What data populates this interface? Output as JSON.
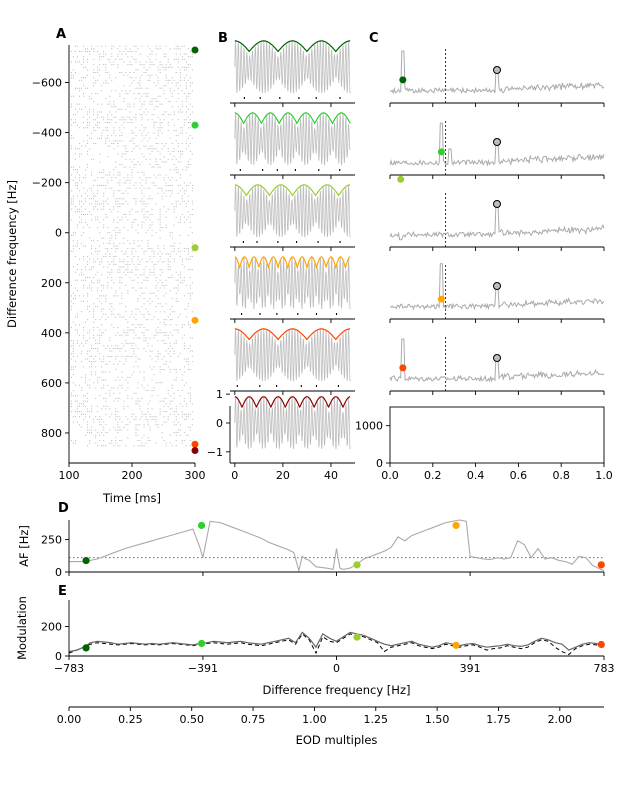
{
  "chart_data": [
    {
      "panel": "A",
      "type": "scatter",
      "description": "spike raster: spike times vs difference frequency",
      "xlabel": "Time [ms]",
      "ylabel": "Difference frequency [Hz]",
      "xlim": [
        100,
        300
      ],
      "ylim": [
        -750,
        920
      ],
      "y_inverted": true,
      "xticks": [
        100,
        200,
        300
      ],
      "yticks": [
        -600,
        -400,
        -200,
        0,
        200,
        400,
        600,
        800
      ],
      "markers": [
        {
          "df": -730,
          "color": "#006400"
        },
        {
          "df": -430,
          "color": "#32cd32"
        },
        {
          "df": 60,
          "color": "#9acd32"
        },
        {
          "df": 350,
          "color": "#ffa500"
        },
        {
          "df": 845,
          "color": "#ff4500"
        },
        {
          "df": 870,
          "color": "#8b0000"
        }
      ]
    },
    {
      "panel": "B",
      "type": "line",
      "description": "stimulus traces with amplitude envelope (6 rows)",
      "xlim": [
        -2,
        50
      ],
      "xticks": [
        0,
        20,
        40
      ],
      "bottom_yticks": [
        -1,
        0,
        1
      ],
      "rows": [
        {
          "color": "#006400",
          "beat_cycles": 4.0
        },
        {
          "color": "#32cd32",
          "beat_cycles": 6.5
        },
        {
          "color": "#9acd32",
          "beat_cycles": 5.0
        },
        {
          "color": "#ffa500",
          "beat_cycles": 12.0
        },
        {
          "color": "#ff4500",
          "beat_cycles": 4.0
        },
        {
          "color": "#8b0000",
          "beat_cycles": 8.0
        }
      ]
    },
    {
      "panel": "C",
      "type": "line",
      "description": "power spectra (5 rows) plus empty axis",
      "last_axis_xlim": [
        0,
        1.0
      ],
      "last_axis_xticks": [
        0.0,
        0.2,
        0.4,
        0.6,
        0.8,
        1.0
      ],
      "last_axis_yticks": [
        0,
        1000
      ],
      "rows": [
        {
          "color": "#006400",
          "marker_x": 0.06,
          "marker_y": 0.3
        },
        {
          "color": "#32cd32",
          "marker_x": 0.24,
          "marker_y": 0.3
        },
        {
          "color": "#9acd32",
          "marker_x": 0.05,
          "marker_y": 0.98
        },
        {
          "color": "#ffa500",
          "marker_x": 0.24,
          "marker_y": 0.25
        },
        {
          "color": "#ff4500",
          "marker_x": 0.06,
          "marker_y": 0.3
        }
      ]
    },
    {
      "panel": "D",
      "type": "line",
      "ylabel": "AF [Hz]",
      "xlim": [
        -783,
        783
      ],
      "ylim": [
        0,
        400
      ],
      "yticks": [
        0,
        250
      ],
      "hline": 110,
      "x": [
        -783,
        -740,
        -700,
        -660,
        -620,
        -580,
        -540,
        -500,
        -460,
        -420,
        -400,
        -391,
        -370,
        -340,
        -320,
        -300,
        -280,
        -260,
        -240,
        -220,
        -200,
        -180,
        -160,
        -140,
        -125,
        -110,
        -100,
        -90,
        -80,
        -60,
        -30,
        -10,
        0,
        10,
        20,
        40,
        60,
        80,
        100,
        120,
        140,
        160,
        180,
        200,
        220,
        240,
        260,
        280,
        300,
        320,
        340,
        360,
        380,
        391,
        410,
        430,
        450,
        470,
        490,
        510,
        530,
        550,
        570,
        590,
        610,
        630,
        650,
        670,
        690,
        710,
        730,
        750,
        783
      ],
      "y": [
        80,
        80,
        100,
        140,
        180,
        210,
        240,
        270,
        300,
        330,
        190,
        110,
        390,
        380,
        360,
        340,
        320,
        300,
        280,
        260,
        230,
        210,
        190,
        170,
        150,
        10,
        120,
        100,
        90,
        40,
        30,
        20,
        180,
        30,
        20,
        30,
        60,
        100,
        120,
        140,
        160,
        190,
        270,
        240,
        280,
        300,
        320,
        340,
        360,
        380,
        390,
        400,
        390,
        120,
        110,
        100,
        95,
        110,
        100,
        110,
        240,
        210,
        110,
        180,
        100,
        110,
        90,
        80,
        60,
        120,
        110,
        50,
        10
      ],
      "markers": [
        {
          "x": -733,
          "y": 88,
          "color": "#006400"
        },
        {
          "x": -395,
          "y": 358,
          "color": "#32cd32"
        },
        {
          "x": 60,
          "y": 55,
          "color": "#9acd32"
        },
        {
          "x": 350,
          "y": 358,
          "color": "#ffa500"
        },
        {
          "x": 775,
          "y": 55,
          "color": "#ff4500"
        }
      ]
    },
    {
      "panel": "E",
      "type": "line",
      "ylabel": "Modulation",
      "xlabel": "Difference frequency [Hz]",
      "xlim": [
        -783,
        783
      ],
      "ylim": [
        0,
        380
      ],
      "yticks": [
        0,
        200
      ],
      "xticks": [
        -783,
        -391,
        0,
        391,
        783
      ],
      "xtick_labels": [
        "−783",
        "−391",
        "0",
        "391",
        "783"
      ],
      "x": [
        -783,
        -760,
        -740,
        -720,
        -700,
        -680,
        -660,
        -640,
        -620,
        -600,
        -580,
        -560,
        -540,
        -520,
        -500,
        -480,
        -460,
        -440,
        -420,
        -400,
        -380,
        -360,
        -340,
        -320,
        -300,
        -280,
        -260,
        -240,
        -220,
        -200,
        -180,
        -160,
        -140,
        -120,
        -100,
        -80,
        -60,
        -40,
        -20,
        0,
        20,
        40,
        60,
        80,
        100,
        120,
        140,
        160,
        180,
        200,
        220,
        240,
        260,
        280,
        300,
        320,
        340,
        360,
        380,
        400,
        420,
        440,
        460,
        480,
        500,
        520,
        540,
        560,
        580,
        600,
        620,
        640,
        660,
        680,
        700,
        720,
        740,
        760,
        783
      ],
      "y": [
        30,
        40,
        60,
        90,
        100,
        95,
        90,
        80,
        85,
        90,
        85,
        80,
        85,
        80,
        85,
        90,
        85,
        80,
        75,
        85,
        90,
        100,
        95,
        90,
        95,
        100,
        90,
        85,
        80,
        90,
        100,
        110,
        120,
        90,
        160,
        120,
        60,
        150,
        120,
        100,
        130,
        160,
        150,
        140,
        120,
        100,
        80,
        70,
        80,
        90,
        100,
        80,
        70,
        60,
        70,
        90,
        80,
        70,
        80,
        85,
        70,
        60,
        65,
        70,
        80,
        70,
        65,
        75,
        100,
        120,
        110,
        90,
        80,
        40,
        60,
        80,
        90,
        85,
        70
      ],
      "dashed_y": [
        20,
        40,
        60,
        80,
        90,
        85,
        80,
        75,
        80,
        85,
        80,
        75,
        80,
        75,
        80,
        85,
        80,
        75,
        70,
        80,
        85,
        90,
        85,
        80,
        85,
        90,
        80,
        75,
        70,
        80,
        90,
        100,
        110,
        80,
        150,
        110,
        20,
        130,
        100,
        90,
        120,
        150,
        140,
        130,
        110,
        90,
        30,
        60,
        70,
        80,
        90,
        70,
        60,
        50,
        60,
        80,
        70,
        60,
        70,
        75,
        60,
        40,
        50,
        55,
        70,
        60,
        50,
        60,
        90,
        110,
        100,
        60,
        30,
        10,
        50,
        70,
        80,
        75,
        60
      ],
      "markers": [
        {
          "x": -733,
          "y": 55,
          "color": "#006400"
        },
        {
          "x": -395,
          "y": 85,
          "color": "#32cd32"
        },
        {
          "x": 60,
          "y": 128,
          "color": "#9acd32"
        },
        {
          "x": 350,
          "y": 72,
          "color": "#ffa500"
        },
        {
          "x": 775,
          "y": 78,
          "color": "#ff4500"
        }
      ]
    },
    {
      "panel": "E-secondary-axis",
      "type": "axis",
      "xlabel": "EOD multiples",
      "xlim": [
        0,
        2.18
      ],
      "xticks": [
        0,
        0.25,
        0.5,
        0.75,
        1.0,
        1.25,
        1.5,
        1.75,
        2.0
      ],
      "xtick_labels": [
        "0.00",
        "0.25",
        "0.50",
        "0.75",
        "1.00",
        "1.25",
        "1.50",
        "1.75",
        "2.00"
      ]
    }
  ],
  "labels": {
    "panel_a": "A",
    "panel_b": "B",
    "panel_c": "C",
    "panel_d": "D",
    "panel_e": "E"
  },
  "colors": {
    "gray": "#aaaaaa",
    "dark_gray": "#666666"
  }
}
